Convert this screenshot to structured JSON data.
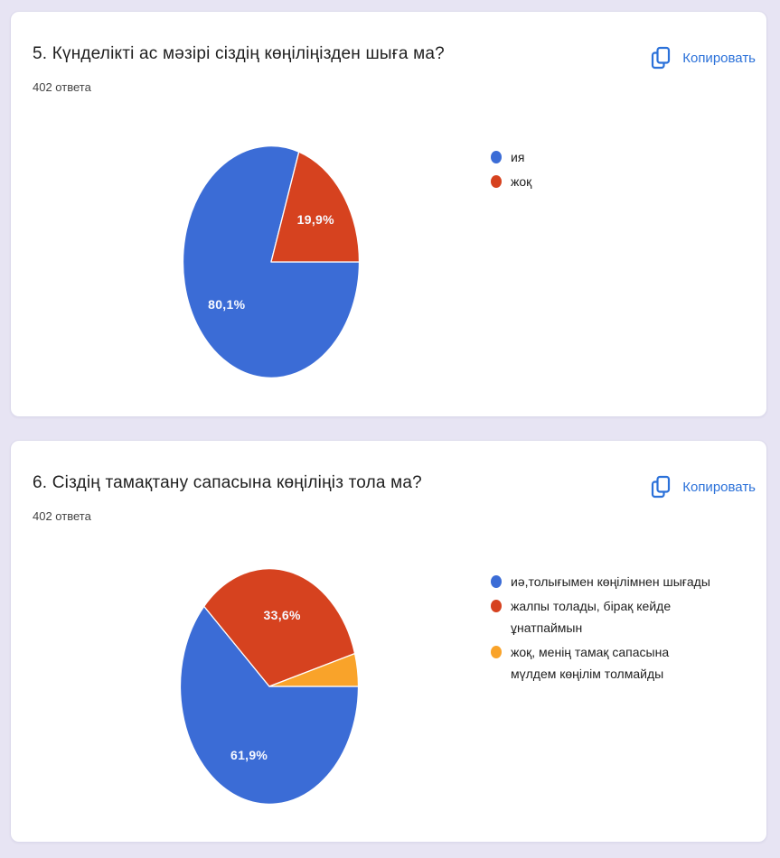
{
  "page": {
    "background_color": "#e7e4f3"
  },
  "cards": [
    {
      "title": "5. Күнделікті ас мәзірі сіздің көңіліңізден шыға ма?",
      "responses_count": "402 ответа",
      "copy_button": {
        "label": "Копировать",
        "icon": "copy-icon",
        "color": "#2b71d9"
      }
    },
    {
      "title": "6. Сіздің тамақтану сапасына көңіліңіз тола ма?",
      "responses_count": "402 ответа",
      "copy_button": {
        "label": "Копировать",
        "icon": "copy-icon",
        "color": "#2b71d9"
      }
    }
  ],
  "chart_data": [
    {
      "type": "pie",
      "title": "5. Күнделікті ас мәзірі сіздің көңіліңізден шыға ма?",
      "subtitle": "402 ответа",
      "legend_position": "right",
      "start_angle_deg": 90,
      "categories": [
        "ия",
        "жоқ"
      ],
      "values": [
        80.1,
        19.9
      ],
      "slices": [
        {
          "label": "ия",
          "value": 80.1,
          "pct_label": "80,1%",
          "color": "#3b6cd6"
        },
        {
          "label": "жоқ",
          "value": 19.9,
          "pct_label": "19,9%",
          "color": "#d6421f"
        }
      ]
    },
    {
      "type": "pie",
      "title": "6. Сіздің тамақтану сапасына көңіліңіз тола ма?",
      "subtitle": "402 ответа",
      "legend_position": "right",
      "start_angle_deg": 90,
      "categories": [
        "иә,толығымен көңілімнен шығады",
        "жалпы толады, бірақ кейде ұнатпаймын",
        "жоқ, менің тамақ сапасына мүлдем көңілім толмайды"
      ],
      "values": [
        61.9,
        33.6,
        4.5
      ],
      "slices": [
        {
          "label": "иә,толығымен көңілімнен шығады",
          "value": 61.9,
          "pct_label": "61,9%",
          "color": "#3b6cd6"
        },
        {
          "label": "жалпы толады, бірақ кейде ұнатпаймын",
          "value": 33.6,
          "pct_label": "33,6%",
          "color": "#d6421f"
        },
        {
          "label": "жоқ, менің тамақ сапасына мүлдем көңілім толмайды",
          "value": 4.5,
          "pct_label": "",
          "color": "#f9a32a"
        }
      ]
    }
  ]
}
